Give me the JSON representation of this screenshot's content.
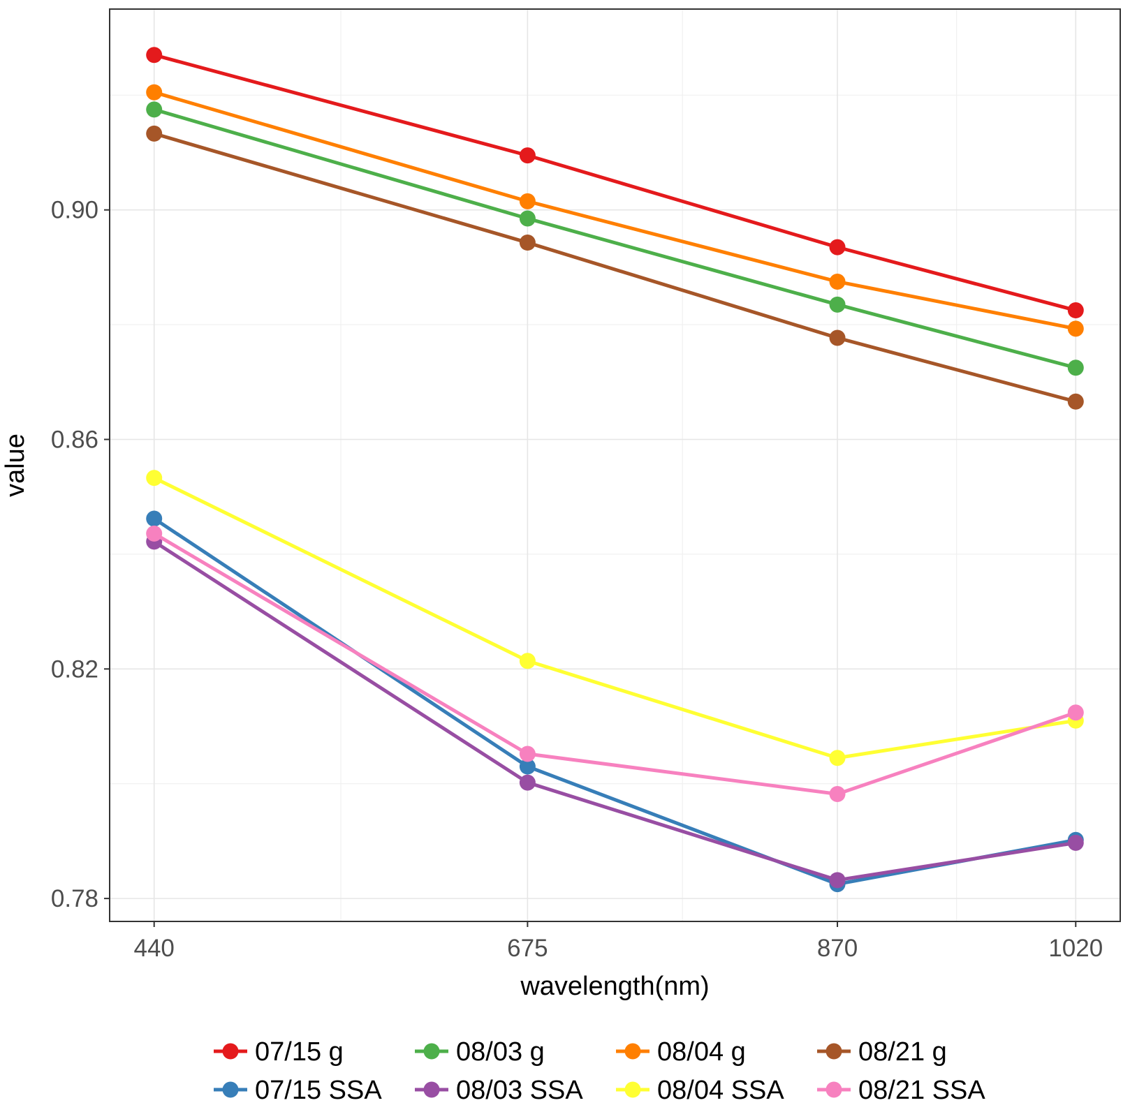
{
  "chart_data": {
    "type": "line",
    "title": "",
    "xlabel": "wavelength(nm)",
    "ylabel": "value",
    "categories": [
      "440",
      "675",
      "870",
      "1020"
    ],
    "x": [
      440,
      675,
      870,
      1020
    ],
    "xlim": [
      412,
      1048
    ],
    "ylim": [
      0.776,
      0.935
    ],
    "yticks": [
      0.78,
      0.82,
      0.86,
      0.9
    ],
    "ytick_labels": [
      "0.78",
      "0.82",
      "0.86",
      "0.90"
    ],
    "grid": true,
    "legend_position": "bottom",
    "series": [
      {
        "name": "07/15 g",
        "color": "#e41a1c",
        "values": [
          0.927,
          0.9095,
          0.8935,
          0.8825
        ]
      },
      {
        "name": "08/03 g",
        "color": "#4daf4a",
        "values": [
          0.9175,
          0.8985,
          0.8835,
          0.8725
        ]
      },
      {
        "name": "08/04 g",
        "color": "#ff7f00",
        "values": [
          0.9205,
          0.9015,
          0.8875,
          0.8793
        ]
      },
      {
        "name": "08/21 g",
        "color": "#a65628",
        "values": [
          0.9133,
          0.8943,
          0.8777,
          0.8666
        ]
      },
      {
        "name": "07/15 SSA",
        "color": "#377eb8",
        "values": [
          0.8462,
          0.803,
          0.7825,
          0.7902
        ]
      },
      {
        "name": "08/03 SSA",
        "color": "#984ea3",
        "values": [
          0.8422,
          0.8002,
          0.7832,
          0.7897
        ]
      },
      {
        "name": "08/04 SSA",
        "color": "#ffff33",
        "values": [
          0.8533,
          0.8214,
          0.8045,
          0.811
        ]
      },
      {
        "name": "08/21 SSA",
        "color": "#f781bf",
        "values": [
          0.8436,
          0.8052,
          0.7982,
          0.8124
        ]
      }
    ]
  }
}
